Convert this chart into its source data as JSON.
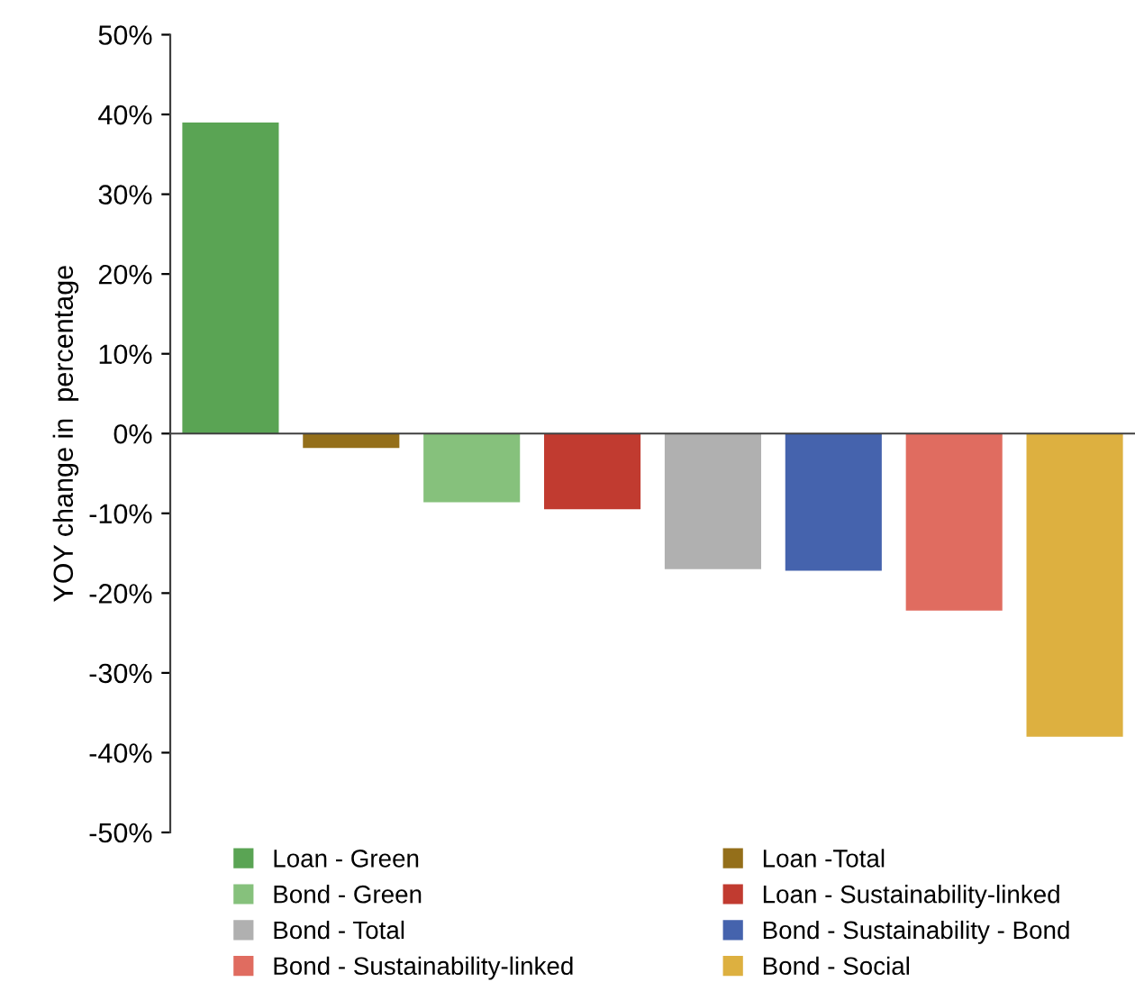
{
  "chart_data": {
    "type": "bar",
    "ylabel": "YOY change in  percentage",
    "categories": [
      null,
      null,
      null,
      null,
      null,
      null,
      null,
      null
    ],
    "series": [
      {
        "name": "Loan - Green",
        "color": "#5aa454",
        "values": [
          39,
          null,
          null,
          null,
          null,
          null,
          null,
          null
        ]
      },
      {
        "name": "Loan -Total",
        "color": "#946f1a",
        "values": [
          null,
          -1.8,
          null,
          null,
          null,
          null,
          null,
          null
        ]
      },
      {
        "name": "Bond - Green",
        "color": "#86c17c",
        "values": [
          null,
          null,
          -8.6,
          null,
          null,
          null,
          null,
          null
        ]
      },
      {
        "name": "Loan - Sustainability-linked",
        "color": "#c13b30",
        "values": [
          null,
          null,
          null,
          -9.5,
          null,
          null,
          null,
          null
        ]
      },
      {
        "name": "Bond - Total",
        "color": "#b0b0b0",
        "values": [
          null,
          null,
          null,
          null,
          -17,
          null,
          null,
          null
        ]
      },
      {
        "name": "Bond - Sustainability - Bond",
        "color": "#4563ad",
        "values": [
          null,
          null,
          null,
          null,
          null,
          -17.2,
          null,
          null
        ]
      },
      {
        "name": "Bond - Sustainability-linked",
        "color": "#e06c60",
        "values": [
          null,
          null,
          null,
          null,
          null,
          null,
          -22.2,
          null
        ]
      },
      {
        "name": "Bond - Social",
        "color": "#ddb040",
        "values": [
          null,
          null,
          null,
          null,
          null,
          null,
          null,
          -38
        ]
      }
    ],
    "ylim": [
      -50,
      50
    ],
    "yticks": [
      {
        "value": -50,
        "label": "-50%"
      },
      {
        "value": -40,
        "label": "-40%"
      },
      {
        "value": -30,
        "label": "-30%"
      },
      {
        "value": -20,
        "label": "-20%"
      },
      {
        "value": -10,
        "label": "-10%"
      },
      {
        "value": 0,
        "label": "0%"
      },
      {
        "value": 10,
        "label": "10%"
      },
      {
        "value": 20,
        "label": "20%"
      },
      {
        "value": 30,
        "label": "30%"
      },
      {
        "value": 40,
        "label": "40%"
      },
      {
        "value": 50,
        "label": "50%"
      }
    ],
    "legend": "bottom",
    "tick_labels": "y"
  }
}
